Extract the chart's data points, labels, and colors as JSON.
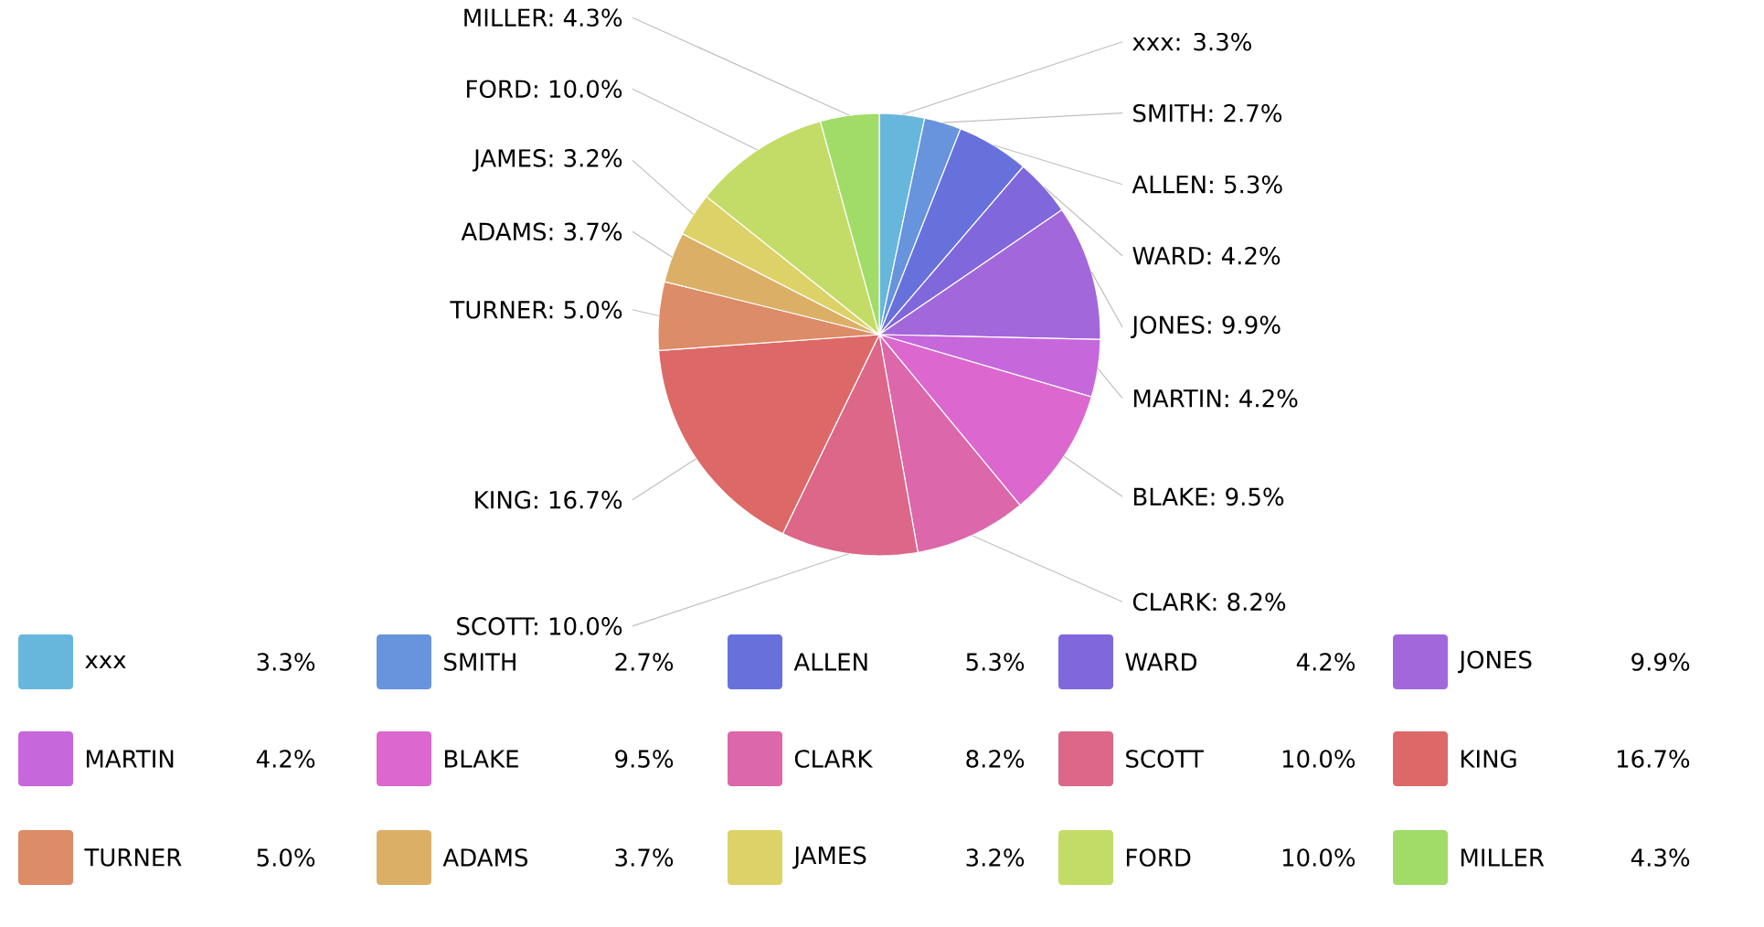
{
  "chart_data": {
    "type": "pie",
    "categories": [
      "xxx",
      "SMITH",
      "ALLEN",
      "WARD",
      "JONES",
      "MARTIN",
      "BLAKE",
      "CLARK",
      "SCOTT",
      "KING",
      "TURNER",
      "ADAMS",
      "JAMES",
      "FORD",
      "MILLER"
    ],
    "values": [
      3.3,
      2.7,
      5.3,
      4.2,
      9.9,
      4.2,
      9.5,
      8.2,
      10.0,
      16.7,
      5.0,
      3.7,
      3.2,
      10.0,
      4.3
    ],
    "colors": [
      "#67b7dc",
      "#6794dc",
      "#6771dc",
      "#8067dc",
      "#a367dc",
      "#c767dc",
      "#dc67ce",
      "#dc67ab",
      "#dc6788",
      "#dc6967",
      "#dc8c67",
      "#dcaf67",
      "#dcd267",
      "#c3dc67",
      "#a0dc67"
    ],
    "value_labels": [
      "3.3%",
      "2.7%",
      "5.3%",
      "4.2%",
      "9.9%",
      "4.2%",
      "9.5%",
      "8.2%",
      "10.0%",
      "16.7%",
      "5.0%",
      "3.7%",
      "3.2%",
      "10.0%",
      "4.3%"
    ],
    "annotations": [
      "xxx: 3.3%",
      "SMITH: 2.7%",
      "ALLEN: 5.3%",
      "WARD: 4.2%",
      "JONES: 9.9%",
      "MARTIN: 4.2%",
      "BLAKE: 9.5%",
      "CLARK: 8.2%",
      "SCOTT: 10.0%",
      "KING: 16.7%",
      "TURNER: 5.0%",
      "ADAMS: 3.7%",
      "JAMES: 3.2%",
      "FORD: 10.0%",
      "MILLER: 4.3%"
    ],
    "legend": "bottom"
  }
}
